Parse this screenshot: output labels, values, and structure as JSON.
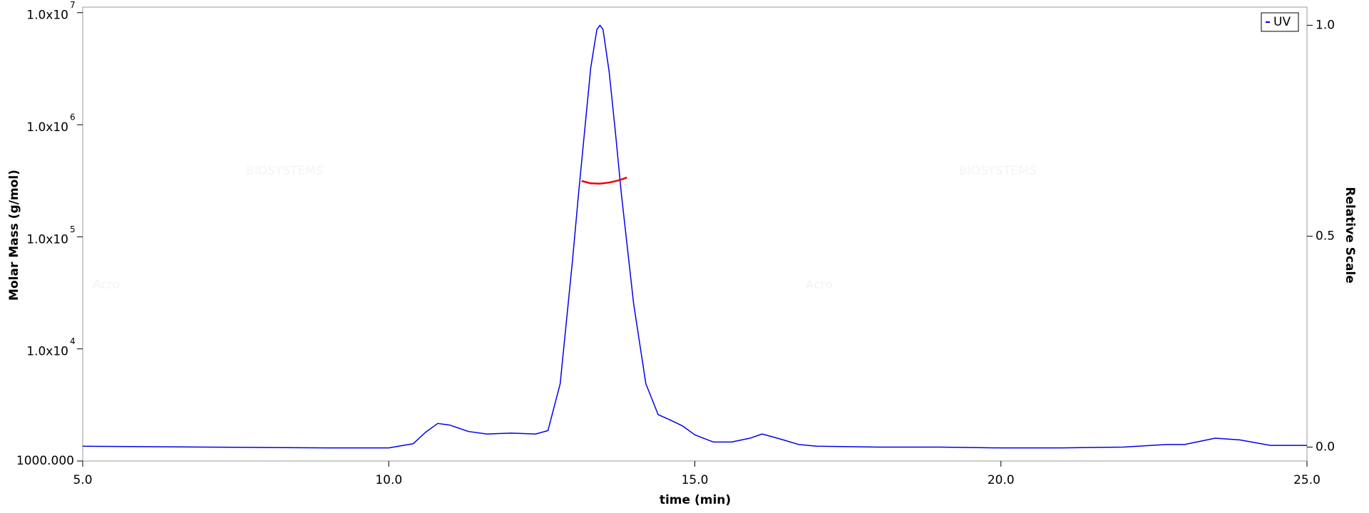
{
  "chart_data": {
    "type": "line",
    "xlabel": "time (min)",
    "ylabel": "Molar Mass (g/mol)",
    "y2label": "Relative Scale",
    "watermark": "Acro",
    "watermark_sub": "BIOSYSTEMS",
    "xlim": [
      5.0,
      25.0
    ],
    "xticks": [
      {
        "value": 5,
        "label": "5.0"
      },
      {
        "value": 10,
        "label": "10.0"
      },
      {
        "value": 15,
        "label": "15.0"
      },
      {
        "value": 20,
        "label": "20.0"
      },
      {
        "value": 25,
        "label": "25.0"
      }
    ],
    "ylog": true,
    "ylim": [
      1000,
      11200000
    ],
    "yticks": [
      {
        "value": 1000,
        "label": "1000.000"
      },
      {
        "value": 10000,
        "label": "1.0x10",
        "exponent": "4"
      },
      {
        "value": 100000,
        "label": "1.0x10",
        "exponent": "5"
      },
      {
        "value": 1000000,
        "label": "1.0x10",
        "exponent": "6"
      },
      {
        "value": 10000000,
        "label": "1.0x10",
        "exponent": "7"
      }
    ],
    "y2lim": [
      -0.033,
      1.043
    ],
    "y2ticks": [
      {
        "value": 0,
        "label": "0.0"
      },
      {
        "value": 0.5,
        "label": "0.5"
      },
      {
        "value": 1,
        "label": "1.0"
      }
    ],
    "legend": "upper right",
    "series": [
      {
        "name": "UV",
        "color": "#0000ee",
        "axis": "y2",
        "x": [
          5,
          7,
          9,
          10,
          10.4,
          10.6,
          10.8,
          11.0,
          11.3,
          11.6,
          12,
          12.4,
          12.6,
          12.8,
          13.0,
          13.1,
          13.2,
          13.3,
          13.4,
          13.45,
          13.5,
          13.6,
          13.7,
          13.8,
          14.0,
          14.2,
          14.4,
          14.6,
          14.8,
          15.0,
          15.3,
          15.6,
          15.9,
          16.1,
          16.4,
          16.7,
          17,
          18,
          19,
          20,
          21,
          22,
          22.7,
          23.0,
          23.5,
          23.9,
          24.4,
          25
        ],
        "values": [
          0.002,
          0,
          -0.002,
          -0.002,
          0.008,
          0.035,
          0.056,
          0.052,
          0.037,
          0.031,
          0.033,
          0.031,
          0.039,
          0.15,
          0.44,
          0.6,
          0.75,
          0.9,
          0.99,
          1.0,
          0.99,
          0.89,
          0.75,
          0.6,
          0.34,
          0.15,
          0.077,
          0.064,
          0.05,
          0.029,
          0.012,
          0.012,
          0.021,
          0.031,
          0.019,
          0.006,
          0.002,
          0,
          0,
          -0.002,
          -0.002,
          0,
          0.006,
          0.006,
          0.021,
          0.017,
          0.004,
          0.004
        ]
      },
      {
        "color": "#ee0000",
        "axis": "y",
        "x": [
          13.15,
          13.3,
          13.45,
          13.6,
          13.75,
          13.89
        ],
        "values": [
          315000,
          300000,
          298000,
          305000,
          318000,
          338000
        ]
      }
    ]
  }
}
